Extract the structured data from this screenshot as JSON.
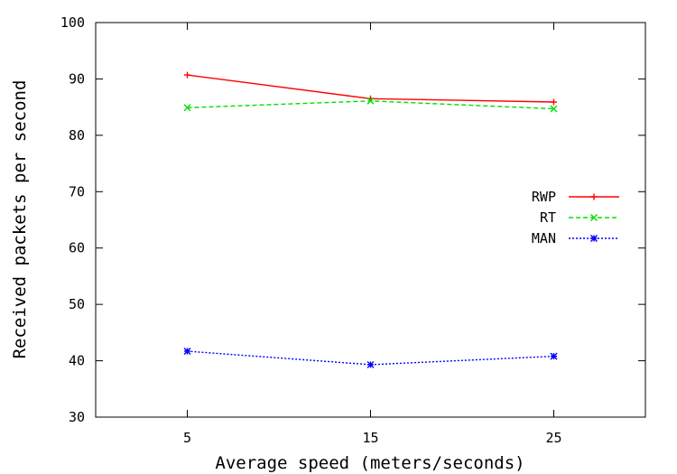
{
  "chart_data": {
    "type": "line",
    "xlabel": "Average speed (meters/seconds)",
    "ylabel": "Received packets per second",
    "categories": [
      "5",
      "15",
      "25"
    ],
    "x": [
      5,
      15,
      25
    ],
    "xlim": [
      0,
      30
    ],
    "ylim": [
      30,
      100
    ],
    "yticks": [
      30,
      40,
      50,
      60,
      70,
      80,
      90,
      100
    ],
    "grid": false,
    "legend_position": "right",
    "series": [
      {
        "name": "RWP",
        "values": [
          90.7,
          86.5,
          85.9
        ],
        "color": "#ff0000",
        "dash": "solid",
        "marker": "plus"
      },
      {
        "name": "RT",
        "values": [
          84.9,
          86.1,
          84.7
        ],
        "color": "#00e000",
        "dash": "dashed",
        "marker": "cross"
      },
      {
        "name": "MAN",
        "values": [
          41.7,
          39.3,
          40.8
        ],
        "color": "#0000ff",
        "dash": "dotted",
        "marker": "star"
      }
    ]
  }
}
